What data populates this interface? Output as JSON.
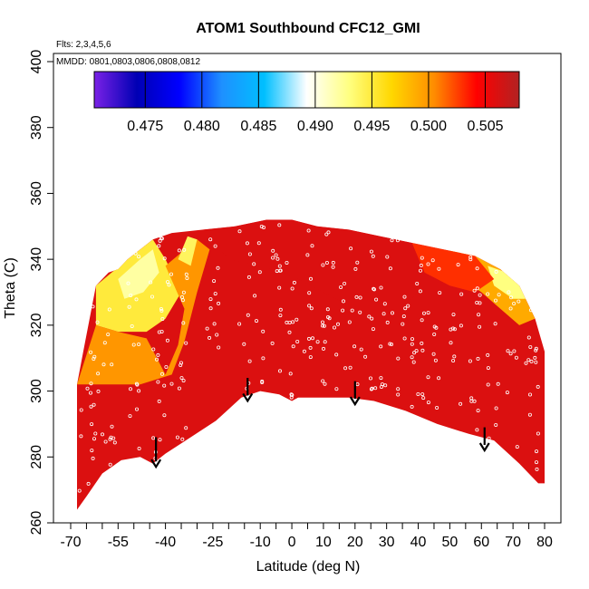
{
  "chart_data": {
    "type": "heatmap",
    "title": "ATOM1 Southbound CFC12_GMI",
    "annotations": {
      "flights": "Flts: 2,3,4,5,6",
      "dates": "MMDD: 0801,0803,0806,0808,0812"
    },
    "xlabel": "Latitude (deg N)",
    "ylabel": "Theta (C)",
    "xlim": [
      -70,
      80
    ],
    "ylim": [
      260,
      400
    ],
    "x_ticks": [
      -70,
      -55,
      -40,
      -25,
      -10,
      0,
      10,
      20,
      30,
      40,
      50,
      60,
      70,
      80
    ],
    "x_tick_labels": [
      "-70",
      "-55",
      "-40",
      "-25",
      "-10",
      "0",
      "10",
      "20",
      "30",
      "40",
      "50",
      "60",
      "70",
      "80"
    ],
    "x_minor_ticks": [
      -65,
      -60,
      -50,
      -45,
      -35,
      -30,
      -20,
      -15,
      -5,
      5,
      15,
      25,
      35,
      45,
      55,
      65,
      75
    ],
    "y_ticks": [
      260,
      280,
      300,
      320,
      340,
      360,
      380,
      400
    ],
    "y_tick_labels": [
      "260",
      "280",
      "300",
      "320",
      "340",
      "360",
      "380",
      "400"
    ],
    "colorbar": {
      "min": 0.4705,
      "max": 0.508,
      "ticks": [
        0.475,
        0.48,
        0.485,
        0.49,
        0.495,
        0.5,
        0.505
      ],
      "tick_labels": [
        "0.475",
        "0.480",
        "0.485",
        "0.490",
        "0.495",
        "0.500",
        "0.505"
      ],
      "stops": [
        "#7a22e6",
        "#0000b4",
        "#0000ff",
        "#1e90ff",
        "#00bfff",
        "#ffffff",
        "#ffff80",
        "#ffd700",
        "#ff8c00",
        "#ff0000",
        "#b22222"
      ],
      "position": "top"
    },
    "field_outline_top": [
      [
        -68,
        302
      ],
      [
        -66,
        312
      ],
      [
        -64,
        322
      ],
      [
        -62,
        332
      ],
      [
        -58,
        336
      ],
      [
        -55,
        337
      ],
      [
        -52,
        340
      ],
      [
        -48,
        343
      ],
      [
        -44,
        346
      ],
      [
        -38,
        348
      ],
      [
        -28,
        349
      ],
      [
        -18,
        350
      ],
      [
        -8,
        352
      ],
      [
        0,
        352
      ],
      [
        8,
        350
      ],
      [
        18,
        349
      ],
      [
        28,
        347
      ],
      [
        38,
        345
      ],
      [
        48,
        343
      ],
      [
        58,
        341
      ],
      [
        66,
        337
      ],
      [
        72,
        332
      ],
      [
        77,
        322
      ],
      [
        80,
        312
      ]
    ],
    "field_outline_bottom": [
      [
        80,
        272
      ],
      [
        78,
        272
      ],
      [
        72,
        278
      ],
      [
        64,
        285
      ],
      [
        56,
        287
      ],
      [
        46,
        290
      ],
      [
        36,
        294
      ],
      [
        26,
        297
      ],
      [
        18,
        298
      ],
      [
        10,
        298
      ],
      [
        2,
        298
      ],
      [
        0,
        297
      ],
      [
        -4,
        299
      ],
      [
        -10,
        300
      ],
      [
        -16,
        298
      ],
      [
        -24,
        291
      ],
      [
        -32,
        286
      ],
      [
        -40,
        281
      ],
      [
        -44,
        278
      ],
      [
        -48,
        280
      ],
      [
        -54,
        279
      ],
      [
        -60,
        275
      ],
      [
        -65,
        268
      ],
      [
        -68,
        264
      ]
    ],
    "color_regions": [
      {
        "value": 0.495,
        "polygon": [
          [
            -62,
            332
          ],
          [
            -52,
            340
          ],
          [
            -44,
            346
          ],
          [
            -40,
            340
          ],
          [
            -35,
            330
          ],
          [
            -40,
            322
          ],
          [
            -46,
            318
          ],
          [
            -55,
            318
          ],
          [
            -62,
            320
          ]
        ]
      },
      {
        "value": 0.492,
        "polygon": [
          [
            -55,
            334
          ],
          [
            -48,
            340
          ],
          [
            -44,
            343
          ],
          [
            -42,
            336
          ],
          [
            -47,
            330
          ],
          [
            -53,
            328
          ]
        ]
      },
      {
        "value": 0.5,
        "polygon": [
          [
            -68,
            302
          ],
          [
            -62,
            320
          ],
          [
            -55,
            318
          ],
          [
            -46,
            316
          ],
          [
            -40,
            305
          ],
          [
            -36,
            314
          ],
          [
            -34,
            325
          ],
          [
            -40,
            338
          ],
          [
            -30,
            346
          ],
          [
            -26,
            343
          ],
          [
            -30,
            330
          ],
          [
            -34,
            315
          ],
          [
            -38,
            305
          ],
          [
            -48,
            302
          ],
          [
            -60,
            302
          ]
        ]
      },
      {
        "value": 0.494,
        "polygon": [
          [
            -36,
            340
          ],
          [
            -33,
            347
          ],
          [
            -30,
            346
          ],
          [
            -32,
            338
          ]
        ]
      },
      {
        "value": 0.499,
        "polygon": [
          [
            50,
            343
          ],
          [
            58,
            341
          ],
          [
            66,
            337
          ],
          [
            72,
            332
          ],
          [
            77,
            322
          ],
          [
            72,
            320
          ],
          [
            66,
            325
          ],
          [
            60,
            330
          ],
          [
            54,
            334
          ],
          [
            48,
            338
          ]
        ]
      },
      {
        "value": 0.493,
        "polygon": [
          [
            62,
            338
          ],
          [
            68,
            336
          ],
          [
            72,
            332
          ],
          [
            74,
            328
          ],
          [
            70,
            328
          ],
          [
            64,
            332
          ]
        ]
      },
      {
        "value": 0.503,
        "polygon": [
          [
            38,
            345
          ],
          [
            48,
            343
          ],
          [
            58,
            341
          ],
          [
            64,
            334
          ],
          [
            58,
            330
          ],
          [
            50,
            332
          ],
          [
            42,
            336
          ]
        ]
      },
      {
        "value": 0.506,
        "polygon": [
          [
            -8,
            352
          ],
          [
            0,
            352
          ],
          [
            8,
            350
          ],
          [
            18,
            349
          ],
          [
            28,
            347
          ],
          [
            38,
            345
          ],
          [
            40,
            330
          ],
          [
            30,
            320
          ],
          [
            20,
            325
          ],
          [
            10,
            330
          ],
          [
            0,
            335
          ],
          [
            -10,
            338
          ],
          [
            -20,
            340
          ],
          [
            -28,
            349
          ],
          [
            -18,
            350
          ]
        ]
      }
    ],
    "field_base_value": 0.506,
    "arrows": [
      {
        "x": -43,
        "y_top": 286,
        "y_bottom": 277
      },
      {
        "x": -14,
        "y_top": 304,
        "y_bottom": 297
      },
      {
        "x": 20,
        "y_top": 303,
        "y_bottom": 296
      },
      {
        "x": 61,
        "y_top": 289,
        "y_bottom": 282
      }
    ]
  }
}
